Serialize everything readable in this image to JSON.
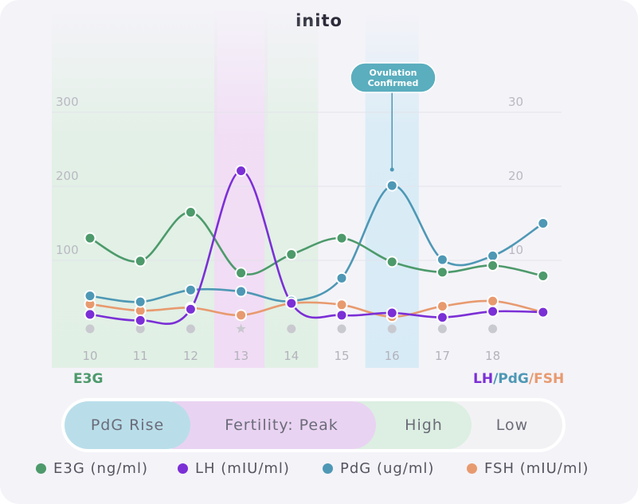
{
  "brand": {
    "logo_text": "inito"
  },
  "colors": {
    "e3g": "#4d9a6b",
    "lh": "#7b2fd6",
    "pdg": "#4e98b5",
    "fsh": "#e89a6f",
    "grey_dot": "#c9c9d0"
  },
  "annotation": {
    "label_line1": "Ovulation",
    "label_line2": "Confirmed",
    "day": "16"
  },
  "left_axis_group_label": "E3G",
  "right_axis_group_label": {
    "lh": "LH",
    "sep1": "/",
    "pdg": "PdG",
    "sep2": "/",
    "fsh": "FSH"
  },
  "phases": [
    {
      "label": "PdG Rise",
      "color": "#b9deea"
    },
    {
      "label": "Fertility: Peak",
      "color": "#e9d3f2"
    },
    {
      "label": "High",
      "color": "#dcefe2"
    },
    {
      "label": "Low",
      "color": "#f2f2f4"
    }
  ],
  "legend": [
    {
      "label": "E3G (ng/ml)",
      "color": "#4d9a6b"
    },
    {
      "label": "LH (mIU/ml)",
      "color": "#7b2fd6"
    },
    {
      "label": "PdG (ug/ml)",
      "color": "#4e98b5"
    },
    {
      "label": "FSH (mIU/ml)",
      "color": "#e89a6f"
    }
  ],
  "chart_data": {
    "type": "line",
    "x": [
      "10",
      "11",
      "12",
      "13",
      "14",
      "15",
      "16",
      "17",
      "18",
      "19"
    ],
    "x_tick_labels": [
      "10",
      "11",
      "12",
      "13",
      "14",
      "15",
      "16",
      "17",
      "18"
    ],
    "left_axis": {
      "ticks": [
        "100",
        "200",
        "300"
      ],
      "ylim": [
        0,
        300
      ]
    },
    "right_axis": {
      "ticks": [
        "10",
        "20",
        "30"
      ],
      "ylim": [
        0,
        30
      ]
    },
    "grid": true,
    "series": [
      {
        "name": "E3G (ng/ml)",
        "axis": "left",
        "values": [
          130,
          99,
          165,
          83,
          108,
          130,
          98,
          84,
          93,
          79
        ]
      },
      {
        "name": "LH (mIU/ml)",
        "axis": "left",
        "values": [
          27,
          19,
          34,
          221,
          42,
          26,
          29,
          23,
          31,
          30
        ]
      },
      {
        "name": "PdG (ug/ml)",
        "axis": "right",
        "values": [
          5.2,
          4.4,
          6.0,
          5.8,
          4.5,
          7.6,
          20.1,
          10.1,
          10.6,
          15.0
        ]
      },
      {
        "name": "FSH (mIU/ml)",
        "axis": "right",
        "values": [
          4.1,
          3.2,
          3.6,
          2.6,
          4.2,
          4.0,
          2.4,
          3.8,
          4.5,
          3.0
        ]
      }
    ],
    "missing_readings": [
      "10",
      "11",
      "12",
      "13",
      "14",
      "15",
      "16",
      "17",
      "18"
    ],
    "phase_shading": [
      {
        "days": [
          "10",
          "11",
          "12"
        ],
        "phase": "High",
        "color": "#e1f0e5"
      },
      {
        "days": [
          "13"
        ],
        "phase": "Fertility: Peak",
        "color": "#f1dcf5"
      },
      {
        "days": [
          "14"
        ],
        "phase": "High",
        "color": "#e1f0e5"
      },
      {
        "days": [
          "16"
        ],
        "phase": "PdG Rise",
        "color": "#d7ebf6"
      }
    ]
  }
}
